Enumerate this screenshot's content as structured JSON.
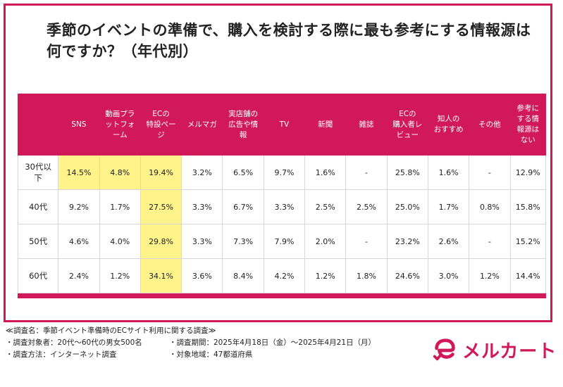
{
  "title": "季節のイベントの準備で、購入を検討する際に最も参考にする情報源は何ですか？（年代別）",
  "chart_data": {
    "type": "table",
    "columns": [
      "SNS",
      "動画プラットフォーム",
      "ECの特設ページ",
      "メルマガ",
      "実店舗の広告や情報",
      "TV",
      "新聞",
      "雑誌",
      "ECの購入者レビュー",
      "知人のおすすめ",
      "その他",
      "参考にする情報源はない"
    ],
    "rows": [
      {
        "label": "30代以下",
        "values": [
          "14.5%",
          "4.8%",
          "19.4%",
          "3.2%",
          "6.5%",
          "9.7%",
          "1.6%",
          "-",
          "25.8%",
          "1.6%",
          "-",
          "12.9%"
        ],
        "highlight": [
          0,
          1,
          2
        ]
      },
      {
        "label": "40代",
        "values": [
          "9.2%",
          "1.7%",
          "27.5%",
          "3.3%",
          "6.7%",
          "3.3%",
          "2.5%",
          "2.5%",
          "25.0%",
          "1.7%",
          "0.8%",
          "15.8%"
        ],
        "highlight": [
          2
        ]
      },
      {
        "label": "50代",
        "values": [
          "4.6%",
          "4.0%",
          "29.8%",
          "3.3%",
          "7.3%",
          "7.9%",
          "2.0%",
          "-",
          "23.2%",
          "2.6%",
          "-",
          "15.2%"
        ],
        "highlight": [
          2
        ]
      },
      {
        "label": "60代",
        "values": [
          "2.4%",
          "1.2%",
          "34.1%",
          "3.6%",
          "8.4%",
          "4.2%",
          "1.2%",
          "1.8%",
          "24.6%",
          "3.0%",
          "1.2%",
          "14.4%"
        ],
        "highlight": [
          2
        ]
      }
    ],
    "header_lines": [
      [
        "SNS"
      ],
      [
        "動画プラ",
        "ットフォ",
        "ーム"
      ],
      [
        "ECの",
        "特設ペー",
        "ジ"
      ],
      [
        "メルマガ"
      ],
      [
        "実店舗の",
        "広告や情",
        "報"
      ],
      [
        "TV"
      ],
      [
        "新聞"
      ],
      [
        "雑誌"
      ],
      [
        "ECの",
        "購入者レ",
        "ビュー"
      ],
      [
        "知人の",
        "おすすめ"
      ],
      [
        "その他"
      ],
      [
        "参考に",
        "する情",
        "報源は",
        "ない"
      ]
    ],
    "row_label_lines": [
      [
        "30代以",
        "下"
      ],
      [
        "40代"
      ],
      [
        "50代"
      ],
      [
        "60代"
      ]
    ]
  },
  "colors": {
    "accent": "#d1195a",
    "highlight": "#fff38a"
  },
  "notes": {
    "survey_name": "≪調査名：季節イベント準備時のECサイト利用に関する調査≫",
    "target": "・調査対象者：20代〜60代の男女500名",
    "period": "・調査期間：2025年4月18日（金）〜2025年4月21日（月）",
    "method": "・調査方法：インターネット調査",
    "region": "・対象地域：47都道府県"
  },
  "logo": {
    "text": "メルカート"
  }
}
